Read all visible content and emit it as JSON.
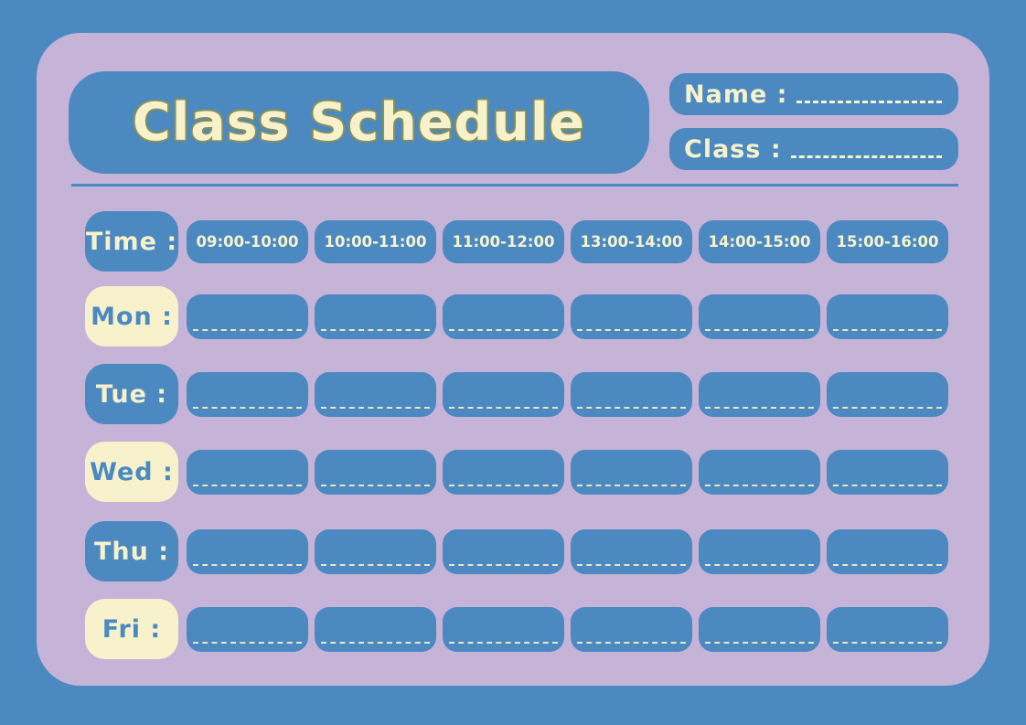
{
  "header": {
    "title": "Class Schedule",
    "name_label": "Name :",
    "class_label": "Class :"
  },
  "schedule": {
    "time_label": "Time :",
    "time_slots": [
      "09:00-10:00",
      "10:00-11:00",
      "11:00-12:00",
      "13:00-14:00",
      "14:00-15:00",
      "15:00-16:00"
    ],
    "days": [
      {
        "label": "Mon :",
        "label_style": "cream"
      },
      {
        "label": "Tue :",
        "label_style": "blue"
      },
      {
        "label": "Wed :",
        "label_style": "cream"
      },
      {
        "label": "Thu :",
        "label_style": "blue"
      },
      {
        "label": "Fri :",
        "label_style": "cream"
      }
    ],
    "cells_per_day": 6
  },
  "palette": {
    "background_blue": "#4b89c0",
    "panel_purple": "#c5b3d8",
    "cream_text": "#f7f2cc",
    "dash_line": "#e9e6c3",
    "title_outline_olive": "#85905e"
  }
}
